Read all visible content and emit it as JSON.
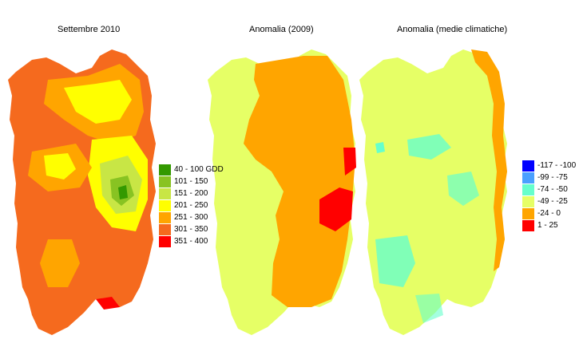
{
  "maps": [
    {
      "title": "Settembre 2010"
    },
    {
      "title": "Anomalia (2009)"
    },
    {
      "title": "Anomalia (medie climatiche)"
    }
  ],
  "legend_gdd": [
    {
      "label": "40 - 100 GDD",
      "color": "#339900"
    },
    {
      "label": "101 - 150",
      "color": "#88c322"
    },
    {
      "label": "151 - 200",
      "color": "#c8e645"
    },
    {
      "label": "201 - 250",
      "color": "#ffff00"
    },
    {
      "label": "251 - 300",
      "color": "#ffa500"
    },
    {
      "label": "301 - 350",
      "color": "#f56a1e"
    },
    {
      "label": "351 - 400",
      "color": "#ff0000"
    }
  ],
  "legend_anomaly": [
    {
      "label": "-117 - -100",
      "color": "#0000ff"
    },
    {
      "label": "-99 - -75",
      "color": "#4aa0ff"
    },
    {
      "label": "-74 - -50",
      "color": "#66ffcc"
    },
    {
      "label": "-49 - -25",
      "color": "#e6ff66"
    },
    {
      "label": "-24 - 0",
      "color": "#ffa500"
    },
    {
      "label": "1 - 25",
      "color": "#ff0000"
    }
  ]
}
